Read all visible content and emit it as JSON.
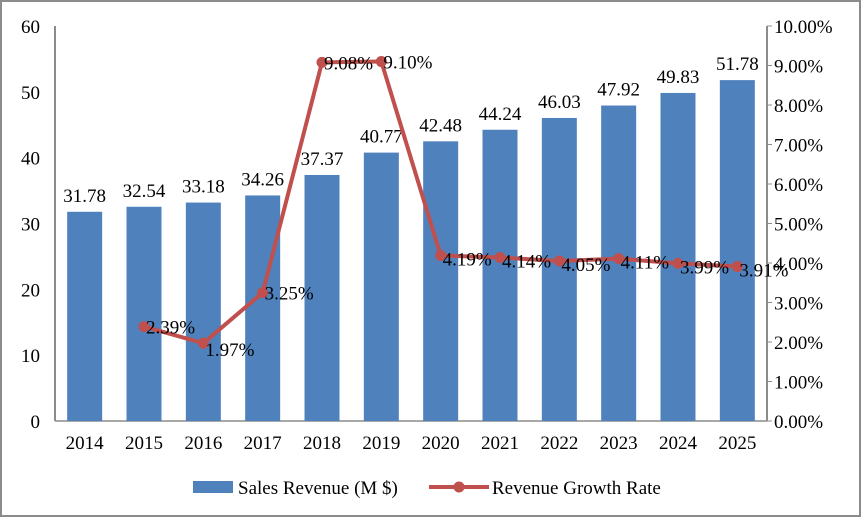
{
  "chart_data": {
    "type": "bar+line",
    "categories": [
      "2014",
      "2015",
      "2016",
      "2017",
      "2018",
      "2019",
      "2020",
      "2021",
      "2022",
      "2023",
      "2024",
      "2025"
    ],
    "series": [
      {
        "name": "Sales Revenue (M $)",
        "type": "bar",
        "axis": "left",
        "color": "#4f81bd",
        "values": [
          31.78,
          32.54,
          33.18,
          34.26,
          37.37,
          40.77,
          42.48,
          44.24,
          46.03,
          47.92,
          49.83,
          51.78
        ],
        "labels": [
          "31.78",
          "32.54",
          "33.18",
          "34.26",
          "37.37",
          "40.77",
          "42.48",
          "44.24",
          "46.03",
          "47.92",
          "49.83",
          "51.78"
        ]
      },
      {
        "name": "Revenue Growth Rate",
        "type": "line",
        "axis": "right",
        "color": "#c0504d",
        "values": [
          null,
          2.39,
          1.97,
          3.25,
          9.08,
          9.1,
          4.19,
          4.14,
          4.05,
          4.11,
          3.99,
          3.91
        ],
        "labels": [
          "",
          "2.39%",
          "1.97%",
          "3.25%",
          "9.08%",
          "9.10%",
          "4.19%",
          "4.14%",
          "4.05%",
          "4.11%",
          "3.99%",
          "3.91%"
        ]
      }
    ],
    "y_left": {
      "range": [
        0,
        60
      ],
      "ticks": [
        "0",
        "10",
        "20",
        "30",
        "40",
        "50",
        "60"
      ]
    },
    "y_right": {
      "range": [
        0,
        10
      ],
      "ticks": [
        "0.00%",
        "1.00%",
        "2.00%",
        "3.00%",
        "4.00%",
        "5.00%",
        "6.00%",
        "7.00%",
        "8.00%",
        "9.00%",
        "10.00%"
      ]
    },
    "grid": false,
    "legend": "bottom"
  }
}
